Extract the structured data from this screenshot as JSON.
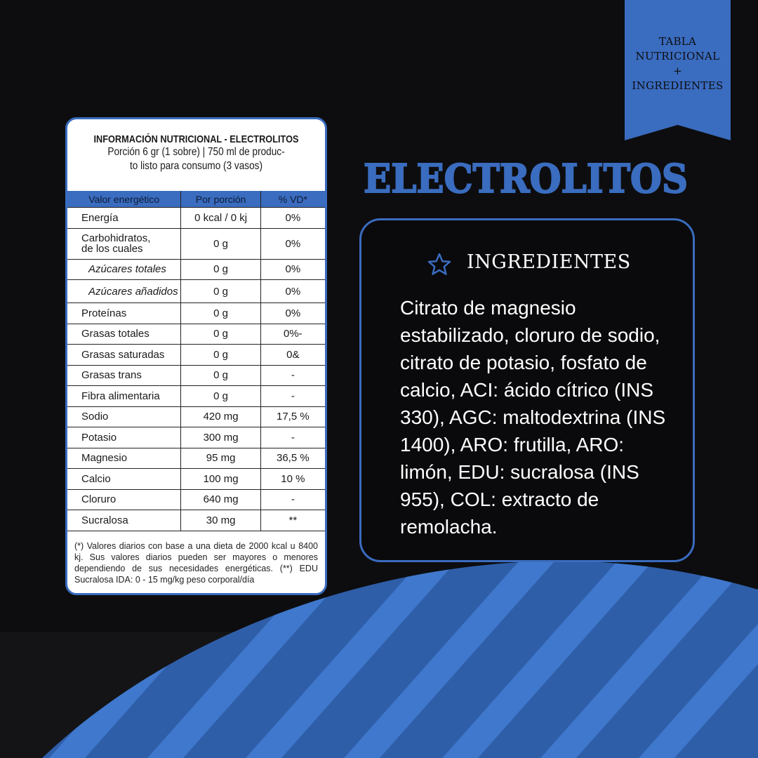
{
  "ribbon": {
    "lines": [
      "TABLA",
      "NUTRICIONAL",
      "+",
      "INGREDIENTES"
    ]
  },
  "title": "ELECTROLITOS",
  "nutrition": {
    "title": "INFORMACIÓN NUTRICIONAL - ELECTROLITOS",
    "subtitle_lines": [
      "Porción 6 gr  (1 sobre) | 750 ml de produc-",
      "to listo para consumo (3 vasos)"
    ],
    "header": [
      "Valor energético",
      "Por porción",
      "% VD*"
    ],
    "rows": [
      [
        "Energía",
        "0 kcal / 0 kj",
        "0%"
      ],
      [
        "Carbohidratos,\nde los cuales",
        "0 g",
        "0%"
      ],
      [
        "Azúcares totales",
        "0 g",
        "0%"
      ],
      [
        "Azúcares añadidos",
        "0 g",
        "0%"
      ],
      [
        "Proteínas",
        "0 g",
        "0%"
      ],
      [
        "Grasas totales",
        "0 g",
        "0%-"
      ],
      [
        "Grasas saturadas",
        "0 g",
        "0&"
      ],
      [
        "Grasas trans",
        "0 g",
        "-"
      ],
      [
        "Fibra alimentaria",
        "0 g",
        "-"
      ],
      [
        "Sodio",
        "420 mg",
        "17,5 %"
      ],
      [
        "Potasio",
        "300 mg",
        "-"
      ],
      [
        "Magnesio",
        "95 mg",
        "36,5 %"
      ],
      [
        "Calcio",
        "100 mg",
        "10 %"
      ],
      [
        "Cloruro",
        "640 mg",
        "-"
      ],
      [
        "Sucralosa",
        "30 mg",
        "**"
      ]
    ],
    "footnote": "(*) Valores diarios con base a una dieta de 2000 kcal u 8400 kj. Sus valores diarios pueden ser mayores o menores dependiendo de sus necesidades energéticas. (**) EDU Sucralosa IDA: 0 - 15 mg/kg peso corporal/día"
  },
  "ingredients": {
    "heading": "INGREDIENTES",
    "lines": [
      "Citrato de magnesio",
      "estabilizado, cloruro de sodio,",
      "citrato de potasio, fosfato de",
      "calcio, ACI: ácido cítrico (INS",
      "330), AGC: maltodextrina (INS",
      "1400), ARO: frutilla, ARO:",
      "limón, EDU: sucralosa (INS",
      "955), COL: extracto de",
      "remolacha."
    ]
  }
}
